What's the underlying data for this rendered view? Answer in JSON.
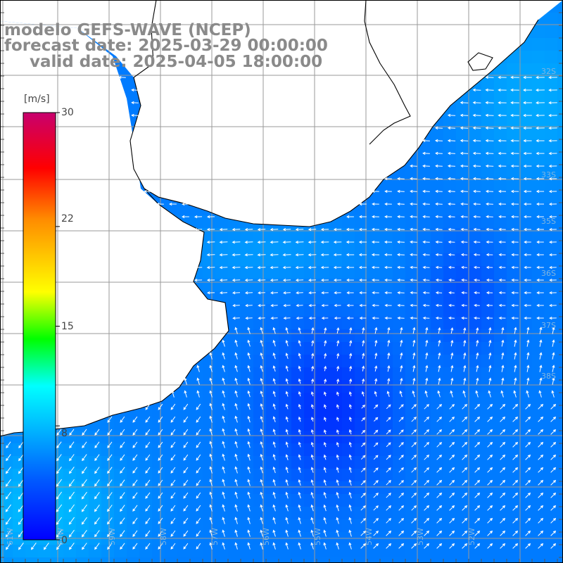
{
  "header": {
    "model": "modelo GEFS-WAVE (NCEP)",
    "forecast": "forecast date: 2025-03-29 00:00:00",
    "valid": "valid date: 2025-04-05 18:00:00"
  },
  "colorbar": {
    "unit": "[m/s]",
    "ticks": [
      "30",
      "22",
      "15",
      "8",
      "0"
    ],
    "tick_values": [
      30,
      22,
      15,
      8,
      0
    ],
    "range": [
      0,
      30
    ],
    "colors": [
      "#0000ff",
      "#0096ff",
      "#00ffff",
      "#00ff00",
      "#ffff00",
      "#ff8c00",
      "#ff0000",
      "#c8006e"
    ]
  },
  "grid_labels": {
    "lat": [
      "32S",
      "33S",
      "35S",
      "36S",
      "37S",
      "38S"
    ],
    "lon": [
      "61W",
      "60W",
      "59W",
      "58W",
      "57W",
      "56W",
      "55W",
      "54W",
      "53W",
      "52W"
    ]
  },
  "map": {
    "land_color": "#ffffff",
    "grid_color": "#9a9a9a",
    "coast_color": "#000000",
    "arrow_color": "#ffffff",
    "field": "wind speed and direction at 10 m"
  }
}
